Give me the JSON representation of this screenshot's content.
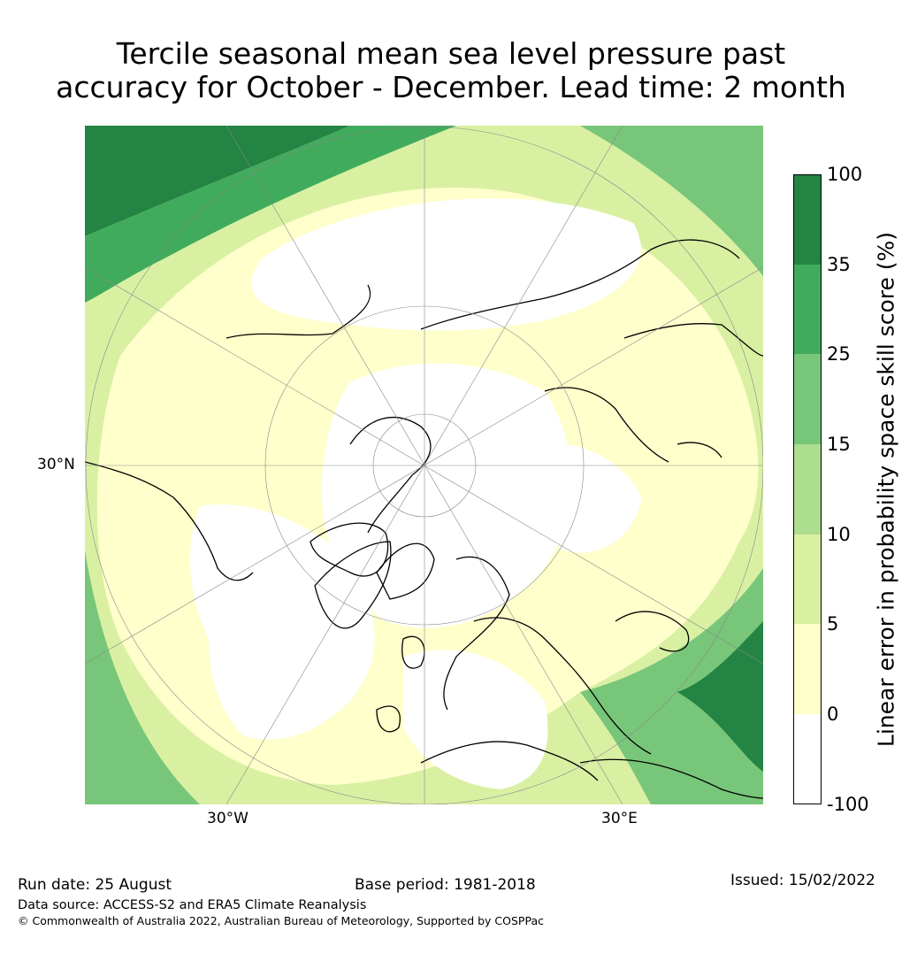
{
  "title": {
    "line1": "Tercile seasonal mean sea level pressure past",
    "line2": "accuracy for October - December. Lead time: 2 month"
  },
  "map": {
    "projection": "north-polar-stereographic",
    "axis_labels": {
      "lat_left": "30°N",
      "lon_bottom_left": "30°W",
      "lon_bottom_right": "30°E"
    }
  },
  "colorbar": {
    "label": "Linear error in probability space skill score (%)",
    "ticks": [
      "100",
      "35",
      "25",
      "15",
      "10",
      "5",
      "0",
      "-100"
    ],
    "bins": [
      {
        "range": "-100 to 0",
        "color": "#ffffff"
      },
      {
        "range": "0 to 5",
        "color": "#ffffcc"
      },
      {
        "range": "5 to 10",
        "color": "#d9f0a3"
      },
      {
        "range": "10 to 15",
        "color": "#addd8e"
      },
      {
        "range": "15 to 25",
        "color": "#78c679"
      },
      {
        "range": "25 to 35",
        "color": "#41ab5d"
      },
      {
        "range": "35 to 100",
        "color": "#238443"
      }
    ]
  },
  "footer": {
    "run_date": "Run date: 25 August",
    "base_period": "Base period: 1981-2018",
    "issued": "Issued: 15/02/2022",
    "data_source": "Data source: ACCESS-S2 and ERA5 Climate Reanalysis",
    "copyright": "© Commonwealth of Australia 2022, Australian Bureau of Meteorology, Supported by COSPPac"
  }
}
